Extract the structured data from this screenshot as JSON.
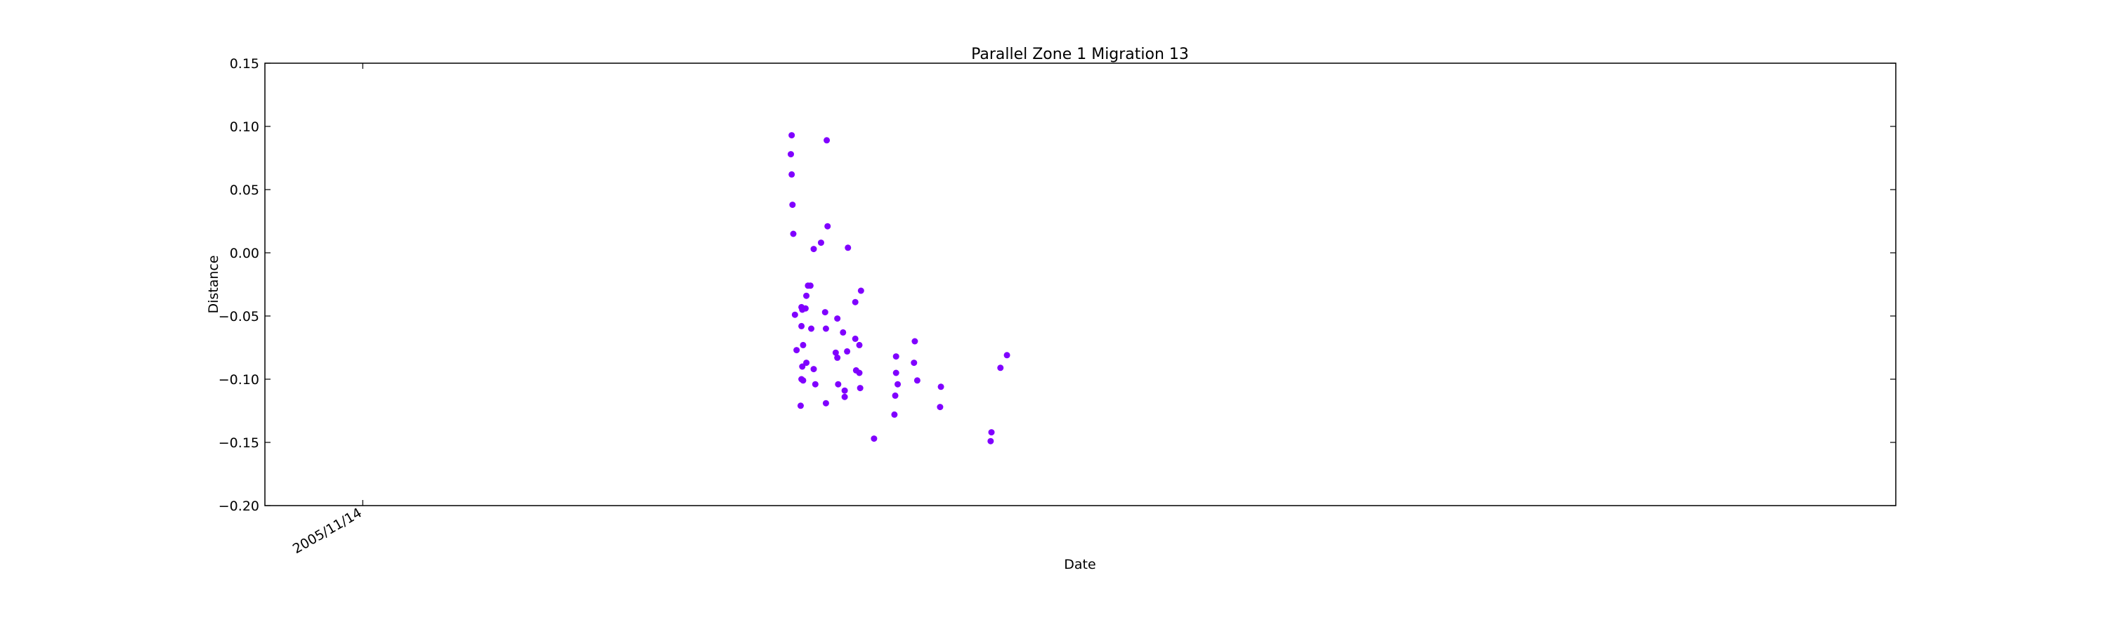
{
  "chart_data": {
    "type": "scatter",
    "title": "Parallel Zone 1 Migration 13",
    "xlabel": "Date",
    "ylabel": "Distance",
    "ylim": [
      -0.2,
      0.15
    ],
    "yticks": [
      "0.15",
      "0.10",
      "0.05",
      "0.00",
      "−0.05",
      "−0.10",
      "−0.15",
      "−0.20"
    ],
    "ytick_values": [
      0.15,
      0.1,
      0.05,
      0.0,
      -0.05,
      -0.1,
      -0.15,
      -0.2
    ],
    "xticks": [
      "2005/11/14"
    ],
    "xlim_days": [
      -120,
      1880
    ],
    "xtick_days": [
      0
    ],
    "grid": false,
    "point_color": "#8000ff",
    "points": [
      {
        "x": 526,
        "y": 0.093
      },
      {
        "x": 525,
        "y": 0.078
      },
      {
        "x": 526,
        "y": 0.062
      },
      {
        "x": 527,
        "y": 0.038
      },
      {
        "x": 528,
        "y": 0.015
      },
      {
        "x": 530,
        "y": -0.049
      },
      {
        "x": 532,
        "y": -0.077
      },
      {
        "x": 538,
        "y": -0.043
      },
      {
        "x": 539,
        "y": -0.045
      },
      {
        "x": 543,
        "y": -0.044
      },
      {
        "x": 538,
        "y": -0.058
      },
      {
        "x": 540,
        "y": -0.073
      },
      {
        "x": 539,
        "y": -0.09
      },
      {
        "x": 538,
        "y": -0.1
      },
      {
        "x": 540,
        "y": -0.101
      },
      {
        "x": 537,
        "y": -0.121
      },
      {
        "x": 544,
        "y": -0.034
      },
      {
        "x": 546,
        "y": -0.026
      },
      {
        "x": 549,
        "y": -0.026
      },
      {
        "x": 550,
        "y": -0.06
      },
      {
        "x": 544,
        "y": -0.087
      },
      {
        "x": 553,
        "y": -0.092
      },
      {
        "x": 555,
        "y": -0.104
      },
      {
        "x": 553,
        "y": 0.003
      },
      {
        "x": 562,
        "y": 0.008
      },
      {
        "x": 570,
        "y": 0.021
      },
      {
        "x": 569,
        "y": 0.089
      },
      {
        "x": 567,
        "y": -0.047
      },
      {
        "x": 568,
        "y": -0.06
      },
      {
        "x": 568,
        "y": -0.119
      },
      {
        "x": 582,
        "y": -0.052
      },
      {
        "x": 580,
        "y": -0.079
      },
      {
        "x": 582,
        "y": -0.083
      },
      {
        "x": 583,
        "y": -0.104
      },
      {
        "x": 589,
        "y": -0.063
      },
      {
        "x": 591,
        "y": -0.109
      },
      {
        "x": 591,
        "y": -0.114
      },
      {
        "x": 594,
        "y": -0.078
      },
      {
        "x": 595,
        "y": 0.004
      },
      {
        "x": 604,
        "y": -0.039
      },
      {
        "x": 604,
        "y": -0.068
      },
      {
        "x": 605,
        "y": -0.093
      },
      {
        "x": 609,
        "y": -0.095
      },
      {
        "x": 610,
        "y": -0.107
      },
      {
        "x": 609,
        "y": -0.073
      },
      {
        "x": 611,
        "y": -0.03
      },
      {
        "x": 627,
        "y": -0.147
      },
      {
        "x": 654,
        "y": -0.082
      },
      {
        "x": 654,
        "y": -0.095
      },
      {
        "x": 656,
        "y": -0.104
      },
      {
        "x": 653,
        "y": -0.113
      },
      {
        "x": 652,
        "y": -0.128
      },
      {
        "x": 677,
        "y": -0.07
      },
      {
        "x": 676,
        "y": -0.087
      },
      {
        "x": 680,
        "y": -0.101
      },
      {
        "x": 709,
        "y": -0.106
      },
      {
        "x": 708,
        "y": -0.122
      },
      {
        "x": 771,
        "y": -0.142
      },
      {
        "x": 770,
        "y": -0.149
      },
      {
        "x": 782,
        "y": -0.091
      },
      {
        "x": 790,
        "y": -0.081
      }
    ]
  }
}
